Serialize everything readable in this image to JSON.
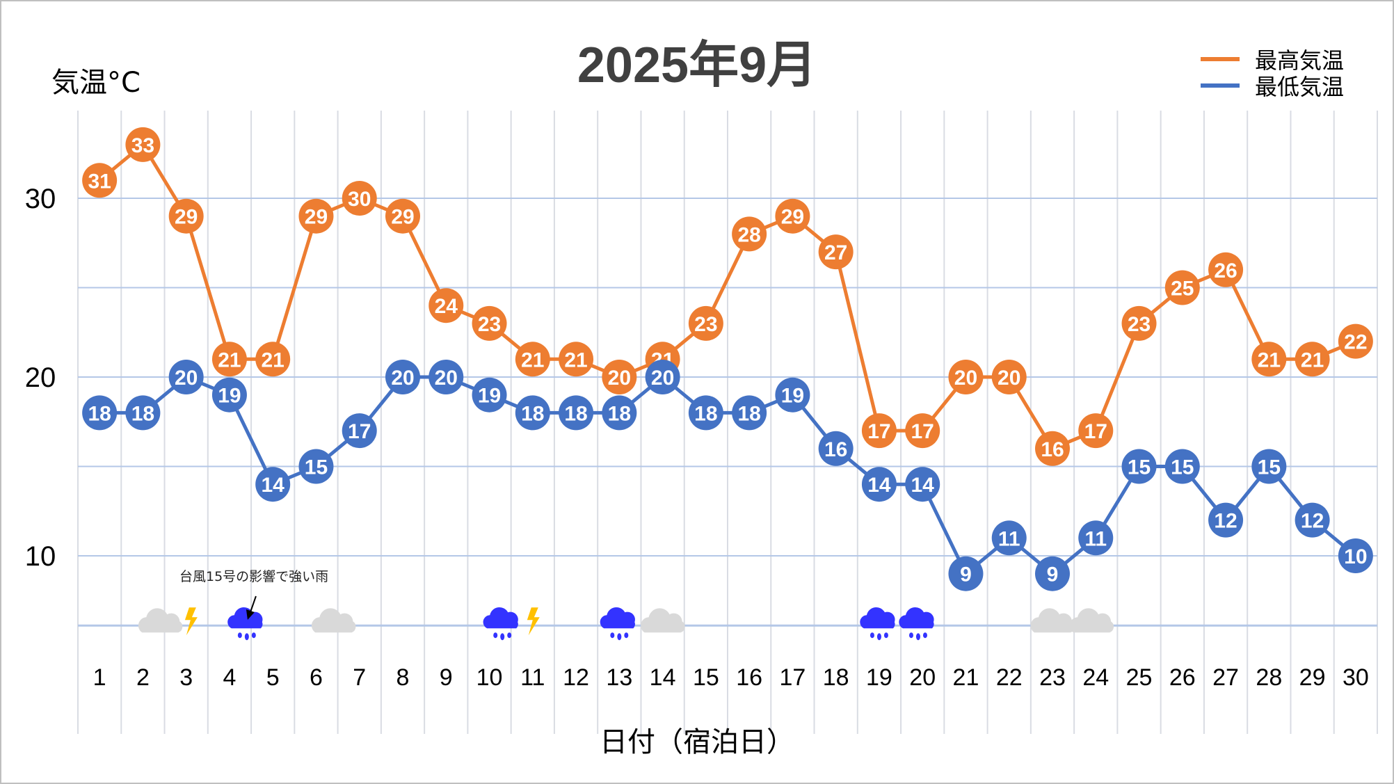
{
  "chart_data": {
    "type": "line",
    "title": "2025年9月",
    "xlabel": "日付（宿泊日）",
    "ylabel": "気温°C",
    "categories": [
      "1",
      "2",
      "3",
      "4",
      "5",
      "6",
      "7",
      "8",
      "9",
      "10",
      "11",
      "12",
      "13",
      "14",
      "15",
      "16",
      "17",
      "18",
      "19",
      "20",
      "21",
      "22",
      "23",
      "24",
      "25",
      "26",
      "27",
      "28",
      "29",
      "30"
    ],
    "y_ticks": [
      "10",
      "20",
      "30"
    ],
    "ylim": [
      6,
      34
    ],
    "grid": true,
    "legend_position": "top-right",
    "series": [
      {
        "name": "最高気温",
        "color": "#ED7D31",
        "values": [
          31,
          33,
          29,
          21,
          21,
          29,
          30,
          29,
          24,
          23,
          21,
          21,
          20,
          21,
          23,
          28,
          29,
          27,
          17,
          17,
          20,
          20,
          16,
          17,
          23,
          25,
          26,
          21,
          21,
          22
        ]
      },
      {
        "name": "最低気温",
        "color": "#4472C4",
        "values": [
          18,
          18,
          20,
          19,
          14,
          15,
          17,
          20,
          20,
          19,
          18,
          18,
          18,
          20,
          18,
          18,
          19,
          16,
          14,
          14,
          9,
          11,
          9,
          11,
          15,
          15,
          12,
          15,
          12,
          10
        ]
      }
    ],
    "weather_icons": [
      {
        "day": 2.4,
        "icon": "cloud-icon"
      },
      {
        "day": 3.1,
        "icon": "lightning-icon"
      },
      {
        "day": 4.4,
        "icon": "rain-icon"
      },
      {
        "day": 6.4,
        "icon": "cloud-icon"
      },
      {
        "day": 10.3,
        "icon": "rain-icon"
      },
      {
        "day": 11.0,
        "icon": "lightning-icon"
      },
      {
        "day": 13.0,
        "icon": "rain-icon"
      },
      {
        "day": 14.0,
        "icon": "cloud-icon"
      },
      {
        "day": 19.0,
        "icon": "rain-icon"
      },
      {
        "day": 19.9,
        "icon": "rain-icon"
      },
      {
        "day": 23.0,
        "icon": "cloud-icon"
      },
      {
        "day": 23.9,
        "icon": "cloud-icon"
      }
    ],
    "annotation": {
      "text": "台風15号の影響で強い雨",
      "day": 4
    }
  },
  "colors": {
    "grid": "#B4C7E7",
    "vgrid": "#D9DCE3",
    "cloud": "#D9D9D9",
    "rain": "#3333FF",
    "lightning": "#FFC000"
  }
}
